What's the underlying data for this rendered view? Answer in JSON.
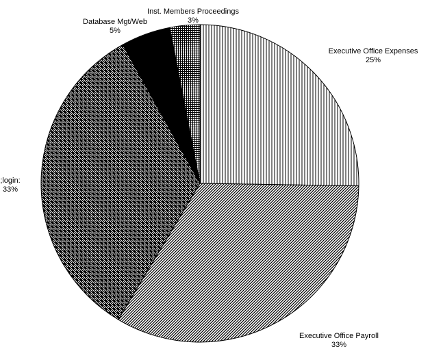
{
  "chart_data": {
    "type": "pie",
    "categories": [
      "Executive Office Expenses",
      "Executive Office Payroll",
      ";login:",
      "Database  Mgt/Web",
      "Inst. Members Proceedings"
    ],
    "values": [
      25,
      33,
      33,
      5,
      3
    ],
    "value_labels": [
      "25%",
      "33%",
      "33%",
      "5%",
      "3%"
    ]
  }
}
